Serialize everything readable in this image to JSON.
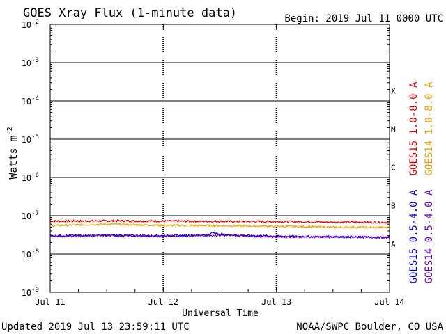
{
  "header": {
    "title": "GOES Xray Flux (1-minute data)",
    "begin": "Begin:  2019 Jul 11 0000 UTC"
  },
  "footer": {
    "updated": "Updated 2019 Jul 13 23:59:11 UTC",
    "credit": "NOAA/SWPC Boulder, CO USA"
  },
  "chart_data": {
    "type": "line",
    "title": "GOES Xray Flux (1-minute data)",
    "xlabel": "Universal Time",
    "ylabel": "Watts m",
    "ylabel_superscript": "-2",
    "y_scale": "log",
    "ylim": [
      1e-09,
      0.01
    ],
    "xlim": [
      "2019-07-11",
      "2019-07-14"
    ],
    "x_ticks": [
      "Jul 11",
      "Jul 12",
      "Jul 13",
      "Jul 14"
    ],
    "y_ticks": [
      {
        "mantissa": "10",
        "exp": "-9"
      },
      {
        "mantissa": "10",
        "exp": "-8"
      },
      {
        "mantissa": "10",
        "exp": "-7"
      },
      {
        "mantissa": "10",
        "exp": "-6"
      },
      {
        "mantissa": "10",
        "exp": "-5"
      },
      {
        "mantissa": "10",
        "exp": "-4"
      },
      {
        "mantissa": "10",
        "exp": "-3"
      },
      {
        "mantissa": "10",
        "exp": "-2"
      }
    ],
    "flare_classes": [
      {
        "label": "A",
        "value": 1e-08
      },
      {
        "label": "B",
        "value": 1e-07
      },
      {
        "label": "C",
        "value": 1e-06
      },
      {
        "label": "M",
        "value": 1e-05
      },
      {
        "label": "X",
        "value": 0.0001
      }
    ],
    "grid": true,
    "legend_position": "right",
    "series": [
      {
        "name": "GOES15 1.0-8.0 A",
        "color": "#e00000",
        "level": 7e-08,
        "x_days": [
          0,
          0.5,
          1,
          1.5,
          2,
          2.5,
          3
        ],
        "values": [
          7.2e-08,
          7.3e-08,
          7.2e-08,
          7.1e-08,
          7e-08,
          6.8e-08,
          6.7e-08
        ]
      },
      {
        "name": "GOES14 1.0-8.0 A",
        "color": "#f0a000",
        "level": 5.5e-08,
        "x_days": [
          0,
          0.5,
          1,
          1.5,
          2,
          2.5,
          3
        ],
        "values": [
          5.5e-08,
          6e-08,
          5.6e-08,
          5.5e-08,
          5.3e-08,
          5e-08,
          4.9e-08
        ]
      },
      {
        "name": "GOES15 0.5-4.0 A",
        "color": "#0000e0",
        "level": 2.9e-08,
        "x_days": [
          0,
          0.5,
          1,
          1.5,
          2,
          2.5,
          3
        ],
        "values": [
          3e-08,
          3.1e-08,
          3e-08,
          3.2e-08,
          2.9e-08,
          2.8e-08,
          2.7e-08
        ]
      },
      {
        "name": "GOES14 0.5-4.0 A",
        "color": "#7000c0",
        "level": 2.9e-08,
        "x_days": [
          0,
          0.5,
          1,
          1.5,
          2,
          2.5,
          3
        ],
        "values": [
          2.9e-08,
          3e-08,
          2.9e-08,
          3.1e-08,
          2.8e-08,
          2.8e-08,
          2.7e-08
        ]
      }
    ],
    "legend_columns": [
      {
        "key": "GOES15 1.0-8.0 A",
        "color": "#e00000"
      },
      {
        "key": "GOES14 1.0-8.0 A",
        "color": "#f0a000"
      },
      {
        "key": "GOES15 0.5-4.0 A",
        "color": "#0000e0"
      },
      {
        "key": "GOES14 0.5-4.0 A",
        "color": "#7000c0"
      }
    ]
  }
}
